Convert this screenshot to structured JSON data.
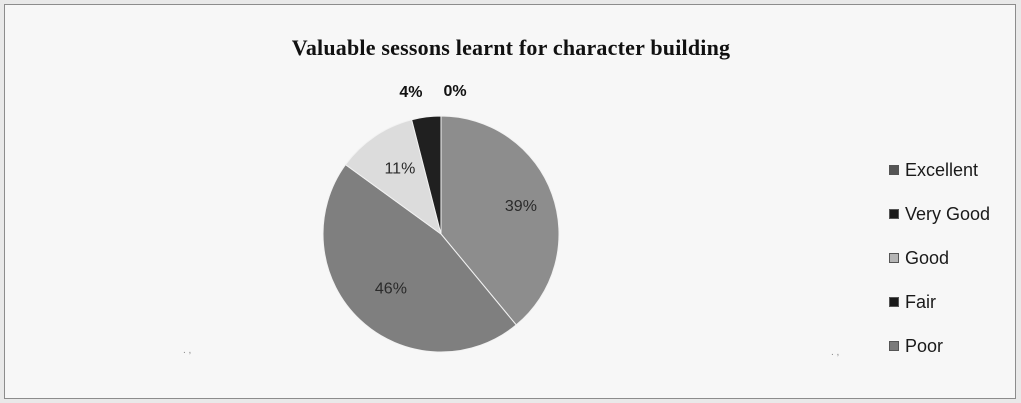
{
  "chart_data": {
    "type": "pie",
    "title": "Valuable sessons learnt for character building",
    "slices": [
      {
        "name": "Excellent",
        "value": 39,
        "label": "39%",
        "color": "#8d8d8d"
      },
      {
        "name": "Very Good",
        "value": 46,
        "label": "46%",
        "color": "#7f7f7f"
      },
      {
        "name": "Good",
        "value": 11,
        "label": "11%",
        "color": "#dcdcdc"
      },
      {
        "name": "Fair",
        "value": 4,
        "label": "4%",
        "color": "#202020"
      },
      {
        "name": "Poor",
        "value": 0,
        "label": "0%",
        "color": "#8a8a8a"
      }
    ],
    "legend": [
      "Excellent",
      "Very Good",
      "Good",
      "Fair",
      "Poor"
    ],
    "legend_colors": [
      "#555555",
      "#1a1a1a",
      "#b5b5b5",
      "#1a1a1a",
      "#7a7a7a"
    ],
    "legend_position": "right"
  }
}
